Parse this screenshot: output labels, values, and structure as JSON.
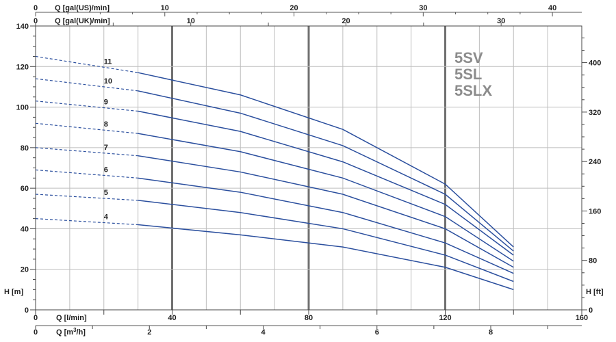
{
  "chart_data": {
    "type": "line",
    "axes": {
      "top_us": {
        "label": "Q [gal(US)/min]",
        "ticks": [
          0,
          10,
          20,
          30,
          40
        ]
      },
      "top_uk": {
        "label": "Q [gal(UK)/min]",
        "ticks": [
          0,
          10,
          20,
          30
        ]
      },
      "bottom_lmin": {
        "label": "Q [l/min]",
        "ticks": [
          0,
          40,
          80,
          120,
          160
        ],
        "xlim": [
          0,
          160
        ]
      },
      "bottom_m3h": {
        "label_prefix": "Q [m",
        "label_sup": "3",
        "label_suffix": "/h]",
        "ticks": [
          0,
          2,
          4,
          6,
          8
        ]
      },
      "left_m": {
        "label": "H [m]",
        "ticks": [
          0,
          20,
          40,
          60,
          80,
          100,
          120,
          140
        ],
        "ylim": [
          0,
          140
        ]
      },
      "right_ft": {
        "label": "H [ft]",
        "ticks": [
          0,
          80,
          160,
          240,
          320,
          400
        ]
      }
    },
    "models": [
      "5SV",
      "5SL",
      "5SLX"
    ],
    "dashed_until_lmin": 30,
    "curve_color": "#2b4f9e",
    "grid": true,
    "series": [
      {
        "name": "4",
        "x": [
          0,
          30,
          60,
          90,
          120,
          140
        ],
        "y": [
          45,
          42,
          37,
          31,
          21,
          10
        ]
      },
      {
        "name": "5",
        "x": [
          0,
          30,
          60,
          90,
          120,
          140
        ],
        "y": [
          57,
          54,
          48,
          40,
          27,
          14
        ]
      },
      {
        "name": "6",
        "x": [
          0,
          30,
          60,
          90,
          120,
          140
        ],
        "y": [
          69,
          65,
          58,
          48,
          33,
          18
        ]
      },
      {
        "name": "7",
        "x": [
          0,
          30,
          60,
          90,
          120,
          140
        ],
        "y": [
          80,
          76,
          68,
          57,
          40,
          21
        ]
      },
      {
        "name": "8",
        "x": [
          0,
          30,
          60,
          90,
          120,
          140
        ],
        "y": [
          92,
          87,
          78,
          65,
          46,
          24
        ]
      },
      {
        "name": "9",
        "x": [
          0,
          30,
          60,
          90,
          120,
          140
        ],
        "y": [
          103,
          98,
          88,
          73,
          52,
          27
        ]
      },
      {
        "name": "10",
        "x": [
          0,
          30,
          60,
          90,
          120,
          140
        ],
        "y": [
          114,
          108,
          97,
          81,
          57,
          29
        ]
      },
      {
        "name": "11",
        "x": [
          0,
          30,
          60,
          90,
          120,
          140
        ],
        "y": [
          125,
          117,
          106,
          89,
          62,
          31
        ]
      }
    ]
  }
}
